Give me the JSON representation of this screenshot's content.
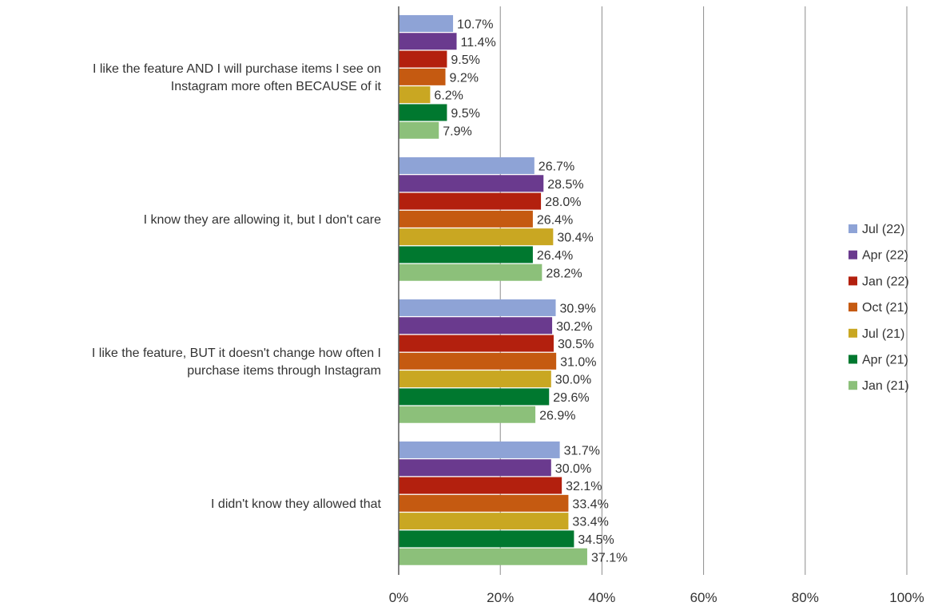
{
  "chart_data": {
    "type": "bar",
    "orientation": "horizontal",
    "categories": [
      [
        "I like the feature AND I will purchase items I see on",
        "Instagram more often BECAUSE of it"
      ],
      [
        "I know they are allowing it, but I don't care"
      ],
      [
        "I like the feature, BUT it doesn't change how often I",
        "purchase items through Instagram"
      ],
      [
        "I didn't know they allowed that"
      ]
    ],
    "series": [
      {
        "name": "Jul (22)",
        "color": "#8EA3D6",
        "values": [
          10.7,
          26.7,
          30.9,
          31.7
        ],
        "labels": [
          "10.7%",
          "26.7%",
          "30.9%",
          "31.7%"
        ]
      },
      {
        "name": "Apr (22)",
        "color": "#6A3A8E",
        "values": [
          11.4,
          28.5,
          30.2,
          30.0
        ],
        "labels": [
          "11.4%",
          "28.5%",
          "30.2%",
          "30.0%"
        ]
      },
      {
        "name": "Jan (22)",
        "color": "#B3200E",
        "values": [
          9.5,
          28.0,
          30.5,
          32.1
        ],
        "labels": [
          "9.5%",
          "28.0%",
          "30.5%",
          "32.1%"
        ]
      },
      {
        "name": "Oct (21)",
        "color": "#C55A11",
        "values": [
          9.2,
          26.4,
          31.0,
          33.4
        ],
        "labels": [
          "9.2%",
          "26.4%",
          "31.0%",
          "33.4%"
        ]
      },
      {
        "name": "Jul (21)",
        "color": "#C9A722",
        "values": [
          6.2,
          30.4,
          30.0,
          33.4
        ],
        "labels": [
          "6.2%",
          "30.4%",
          "30.0%",
          "33.4%"
        ]
      },
      {
        "name": "Apr (21)",
        "color": "#00782F",
        "values": [
          9.5,
          26.4,
          29.6,
          34.5
        ],
        "labels": [
          "9.5%",
          "26.4%",
          "29.6%",
          "34.5%"
        ]
      },
      {
        "name": "Jan (21)",
        "color": "#8CC07A",
        "values": [
          7.9,
          28.2,
          26.9,
          37.1
        ],
        "labels": [
          "7.9%",
          "28.2%",
          "26.9%",
          "37.1%"
        ]
      }
    ],
    "xlim": [
      0,
      100
    ],
    "xticks": [
      "0%",
      "20%",
      "40%",
      "60%",
      "80%",
      "100%"
    ],
    "xtick_values": [
      0,
      20,
      40,
      60,
      80,
      100
    ],
    "grid": true,
    "legend_position": "right",
    "title": "",
    "xlabel": "",
    "ylabel": ""
  }
}
